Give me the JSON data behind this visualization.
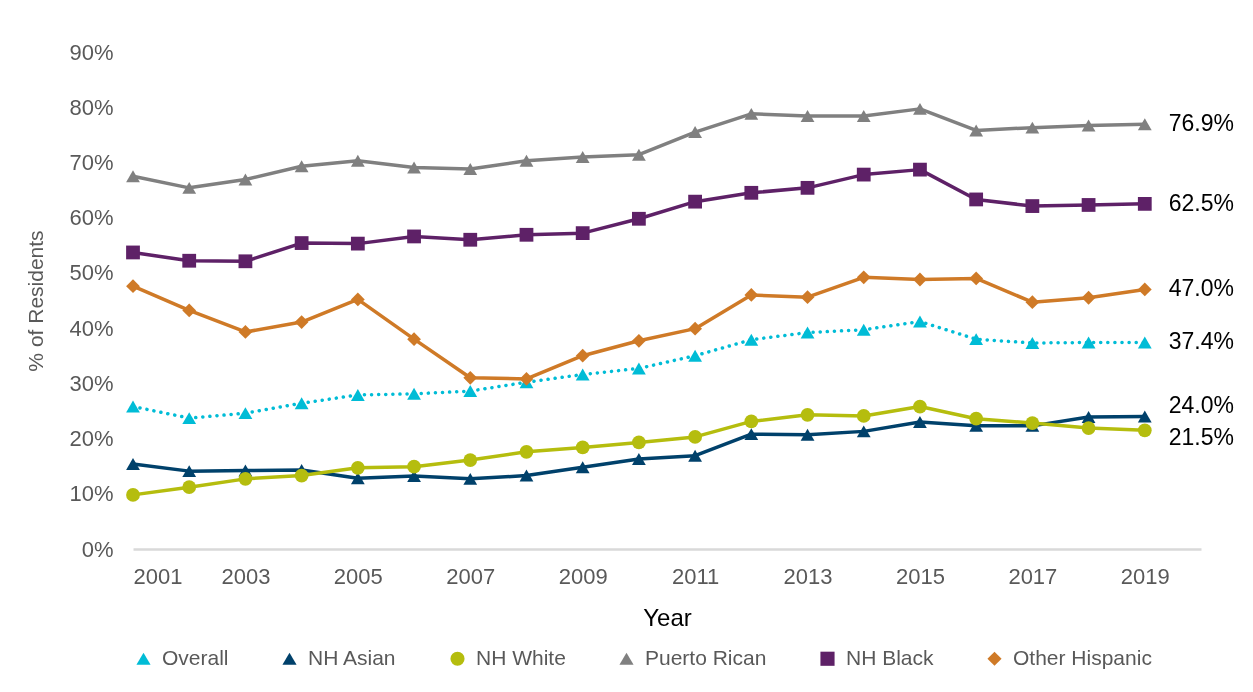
{
  "chart_data": {
    "type": "line",
    "xlabel": "Year",
    "ylabel": "% of Residents",
    "legend": "bottom",
    "x": [
      2001,
      2002,
      2003,
      2004,
      2005,
      2006,
      2007,
      2008,
      2009,
      2010,
      2011,
      2012,
      2013,
      2014,
      2015,
      2016,
      2017,
      2018,
      2019
    ],
    "xlim": [
      2001,
      2020
    ],
    "xticks": [
      2001,
      2003,
      2005,
      2007,
      2009,
      2011,
      2013,
      2015,
      2017,
      2019
    ],
    "ylim": [
      0,
      90
    ],
    "yticks": [
      {
        "value": 0,
        "label": "0%"
      },
      {
        "value": 10,
        "label": "10%"
      },
      {
        "value": 20,
        "label": "20%"
      },
      {
        "value": 30,
        "label": "30%"
      },
      {
        "value": 40,
        "label": "40%"
      },
      {
        "value": 50,
        "label": "50%"
      },
      {
        "value": 60,
        "label": "60%"
      },
      {
        "value": 70,
        "label": "70%"
      },
      {
        "value": 80,
        "label": "80%"
      },
      {
        "value": 90,
        "label": "90%"
      }
    ],
    "series": [
      {
        "name": "Overall",
        "color": "#00bcd6",
        "marker": "triangle",
        "line_style": "dotted",
        "values": [
          25.8,
          23.7,
          24.6,
          26.4,
          27.9,
          28.1,
          28.6,
          30.2,
          31.6,
          32.7,
          35.0,
          37.9,
          39.2,
          39.7,
          41.2,
          38.0,
          37.3,
          37.4,
          37.4
        ],
        "value_labels": [
          null,
          null,
          null,
          null,
          null,
          null,
          null,
          null,
          null,
          null,
          null,
          null,
          null,
          null,
          null,
          null,
          null,
          null,
          "37.4%"
        ]
      },
      {
        "name": "NH Asian",
        "color": "#00416b",
        "marker": "triangle",
        "line_style": "solid",
        "values": [
          15.4,
          14.1,
          14.2,
          14.3,
          12.8,
          13.2,
          12.7,
          13.3,
          14.8,
          16.3,
          16.9,
          20.8,
          20.7,
          21.3,
          23.0,
          22.3,
          22.3,
          23.9,
          24.0
        ],
        "value_labels": [
          null,
          null,
          null,
          null,
          null,
          null,
          null,
          null,
          null,
          null,
          null,
          null,
          null,
          null,
          null,
          null,
          null,
          null,
          "24.0%"
        ]
      },
      {
        "name": "NH White",
        "color": "#b5bd0e",
        "marker": "circle",
        "line_style": "solid",
        "values": [
          9.8,
          11.2,
          12.7,
          13.3,
          14.7,
          14.9,
          16.1,
          17.6,
          18.4,
          19.3,
          20.3,
          23.1,
          24.3,
          24.1,
          25.8,
          23.6,
          22.8,
          21.9,
          21.5
        ],
        "value_labels": [
          null,
          null,
          null,
          null,
          null,
          null,
          null,
          null,
          null,
          null,
          null,
          null,
          null,
          null,
          null,
          null,
          null,
          null,
          "21.5%"
        ]
      },
      {
        "name": "Puerto Rican",
        "color": "#808080",
        "marker": "triangle",
        "line_style": "solid",
        "values": [
          67.5,
          65.4,
          66.9,
          69.3,
          70.3,
          69.1,
          68.8,
          70.3,
          71.0,
          71.4,
          75.5,
          78.8,
          78.4,
          78.4,
          79.7,
          75.8,
          76.3,
          76.7,
          76.9
        ],
        "value_labels": [
          null,
          null,
          null,
          null,
          null,
          null,
          null,
          null,
          null,
          null,
          null,
          null,
          null,
          null,
          null,
          null,
          null,
          null,
          "76.9%"
        ]
      },
      {
        "name": "NH Black",
        "color": "#5e2167",
        "marker": "square",
        "line_style": "solid",
        "values": [
          53.7,
          52.2,
          52.1,
          55.4,
          55.3,
          56.6,
          56.0,
          56.9,
          57.2,
          59.8,
          62.9,
          64.5,
          65.4,
          67.8,
          68.7,
          63.3,
          62.1,
          62.3,
          62.5
        ],
        "value_labels": [
          null,
          null,
          null,
          null,
          null,
          null,
          null,
          null,
          null,
          null,
          null,
          null,
          null,
          null,
          null,
          null,
          null,
          null,
          "62.5%"
        ]
      },
      {
        "name": "Other Hispanic",
        "color": "#cf7a27",
        "marker": "diamond",
        "line_style": "solid",
        "values": [
          47.6,
          43.2,
          39.3,
          41.1,
          45.2,
          38.0,
          31.0,
          30.8,
          35.0,
          37.7,
          39.9,
          46.0,
          45.6,
          49.2,
          48.8,
          49.0,
          44.7,
          45.5,
          47.0
        ],
        "value_labels": [
          null,
          null,
          null,
          null,
          null,
          null,
          null,
          null,
          null,
          null,
          null,
          null,
          null,
          null,
          null,
          null,
          null,
          null,
          "47.0%"
        ]
      }
    ]
  }
}
